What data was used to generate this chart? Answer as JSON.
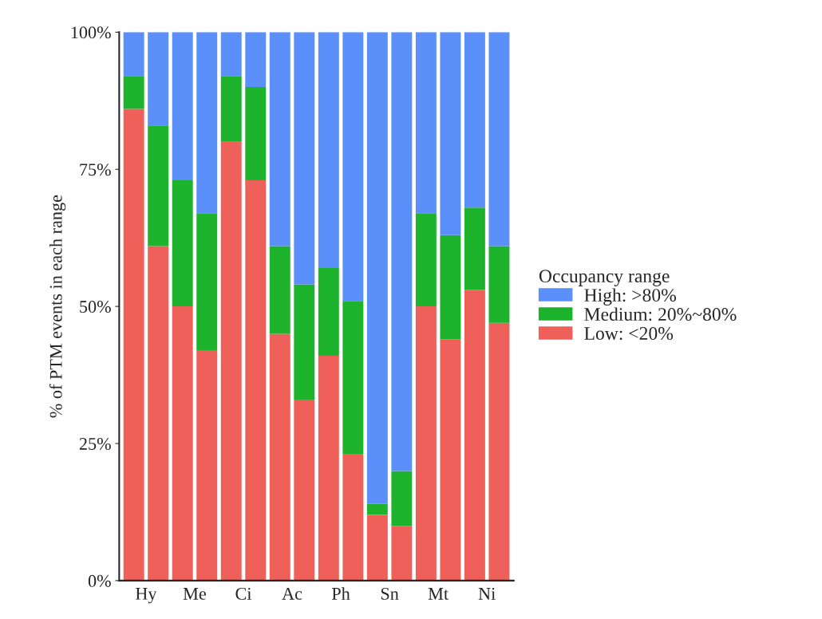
{
  "chart_data": {
    "type": "bar",
    "stacked": true,
    "ylabel": "% of PTM events in each range",
    "legend_title": "Occupancy range",
    "legend": "right",
    "categories": [
      "Hy",
      null,
      "Me",
      null,
      "Ci",
      null,
      "Ac",
      null,
      "Ph",
      null,
      "Sn",
      null,
      "Mt",
      null,
      "Ni",
      null
    ],
    "series": [
      {
        "name": "Low: <20%",
        "color": "#ee6059",
        "values": [
          86,
          61,
          50,
          42,
          80,
          73,
          45,
          33,
          41,
          23,
          12,
          10,
          50,
          44,
          53,
          47
        ]
      },
      {
        "name": "Medium: 20%~80%",
        "color": "#1db32d",
        "values": [
          6,
          22,
          23,
          25,
          12,
          17,
          16,
          21,
          16,
          28,
          2,
          10,
          17,
          19,
          15,
          14
        ]
      },
      {
        "name": "High: >80%",
        "color": "#5b8ff9",
        "values": [
          8,
          17,
          27,
          33,
          8,
          10,
          39,
          46,
          43,
          49,
          86,
          80,
          33,
          37,
          32,
          39
        ]
      }
    ],
    "ylim": [
      0,
      100
    ],
    "yticks": [
      {
        "value": 0,
        "label": "0%"
      },
      {
        "value": 25,
        "label": "25%"
      },
      {
        "value": 50,
        "label": "50%"
      },
      {
        "value": 75,
        "label": "75%"
      },
      {
        "value": 100,
        "label": "100%"
      }
    ],
    "grid": false
  }
}
